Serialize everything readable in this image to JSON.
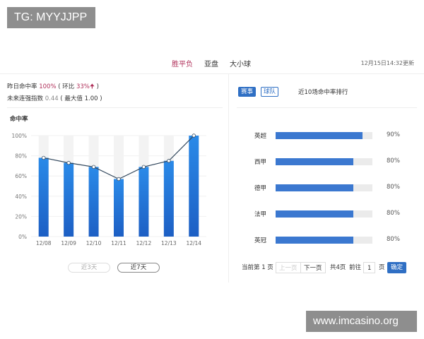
{
  "watermarks": {
    "top_left": "TG: MYYJJPP",
    "bottom_right": "www.imcasino.org"
  },
  "tabs": [
    {
      "label": "胜平负",
      "active": true
    },
    {
      "label": "亚盘"
    },
    {
      "label": "大小球"
    }
  ],
  "updated": "12月15日14:32更新",
  "stats": {
    "line1_label": "昨日命中率",
    "line1_value": "100%",
    "line1_mid": "( 环比",
    "line1_change": "33%",
    "line1_arrow": "🠉",
    "line1_end": ")",
    "line2_label": "未来连强指数",
    "line2_value": "0.44",
    "line2_rest": "( 最大值 1.00 )"
  },
  "chart_data": {
    "type": "bar",
    "title": "命中率",
    "categories": [
      "12/08",
      "12/09",
      "12/10",
      "12/11",
      "12/12",
      "12/13",
      "12/14"
    ],
    "values": [
      78,
      73,
      69,
      57,
      69,
      75,
      100
    ],
    "overlay": "line",
    "yticks": [
      "0%",
      "20%",
      "40%",
      "60%",
      "80%",
      "100%"
    ],
    "ylim": [
      0,
      100
    ],
    "grid": true,
    "color": "#1f74d6"
  },
  "range_buttons": [
    {
      "label": "近3天",
      "active": false
    },
    {
      "label": "近7天",
      "active": true
    }
  ],
  "right": {
    "tab_event": "赛事",
    "tab_team": "球队",
    "heading": "近10场命中率排行",
    "rows": [
      {
        "name": "英超",
        "pct": "90%",
        "value": 90
      },
      {
        "name": "西甲",
        "pct": "80%",
        "value": 80
      },
      {
        "name": "德甲",
        "pct": "80%",
        "value": 80
      },
      {
        "name": "法甲",
        "pct": "80%",
        "value": 80
      },
      {
        "name": "英冠",
        "pct": "80%",
        "value": 80
      }
    ],
    "pager": {
      "current": "当前第 1 页",
      "prev": "上一页",
      "next": "下一页",
      "total": "共4页",
      "goto": "前往",
      "page": "1",
      "page_unit": "页",
      "confirm": "确定"
    }
  },
  "accent": "#2f6fc4"
}
